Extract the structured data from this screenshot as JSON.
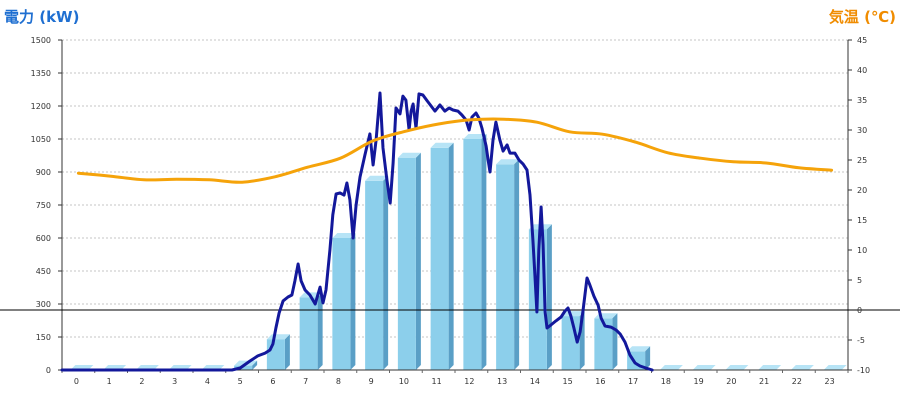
{
  "chart_data": {
    "type": "bar",
    "categories": [
      "0",
      "1",
      "2",
      "3",
      "4",
      "5",
      "6",
      "7",
      "8",
      "9",
      "10",
      "11",
      "12",
      "13",
      "14",
      "15",
      "16",
      "17",
      "18",
      "19",
      "20",
      "21",
      "22",
      "23"
    ],
    "y_left": {
      "label": "電力 (kW)",
      "range": [
        0,
        1500
      ],
      "ticks": [
        0,
        150,
        300,
        450,
        600,
        750,
        900,
        1050,
        1200,
        1350,
        1500
      ],
      "color": "#1f6fd1"
    },
    "y_right": {
      "label": "気温 (℃)",
      "range": [
        -10,
        45
      ],
      "ticks": [
        -10,
        -5,
        0,
        5,
        10,
        15,
        20,
        25,
        30,
        35,
        40,
        45
      ],
      "color": "#f08c00"
    },
    "series": [
      {
        "type": "bar",
        "axis": "y_left",
        "values": [
          0,
          0,
          0,
          0,
          0,
          20,
          140,
          330,
          600,
          860,
          965,
          1010,
          1050,
          935,
          640,
          245,
          235,
          85,
          0,
          0,
          0,
          0,
          0,
          0
        ],
        "color": "#8ccfeb",
        "side_color": "#5a9fc6",
        "top_color": "#b7e4f6"
      },
      {
        "type": "line",
        "axis": "y_left",
        "color": "#13189b",
        "points": [
          [
            0,
            0
          ],
          [
            5.19,
            0
          ],
          [
            5.44,
            9
          ],
          [
            5.74,
            41
          ],
          [
            5.98,
            64
          ],
          [
            6.2,
            77
          ],
          [
            6.35,
            91
          ],
          [
            6.44,
            118
          ],
          [
            6.53,
            191
          ],
          [
            6.63,
            259
          ],
          [
            6.75,
            314
          ],
          [
            6.9,
            332
          ],
          [
            7.02,
            341
          ],
          [
            7.11,
            405
          ],
          [
            7.21,
            482
          ],
          [
            7.3,
            405
          ],
          [
            7.42,
            364
          ],
          [
            7.57,
            341
          ],
          [
            7.73,
            300
          ],
          [
            7.88,
            377
          ],
          [
            7.97,
            305
          ],
          [
            8.06,
            364
          ],
          [
            8.18,
            545
          ],
          [
            8.27,
            705
          ],
          [
            8.37,
            800
          ],
          [
            8.49,
            805
          ],
          [
            8.61,
            795
          ],
          [
            8.7,
            850
          ],
          [
            8.79,
            773
          ],
          [
            8.89,
            600
          ],
          [
            8.98,
            750
          ],
          [
            9.1,
            877
          ],
          [
            9.25,
            977
          ],
          [
            9.4,
            1073
          ],
          [
            9.5,
            932
          ],
          [
            9.59,
            1045
          ],
          [
            9.71,
            1259
          ],
          [
            9.8,
            1009
          ],
          [
            9.92,
            864
          ],
          [
            10.02,
            759
          ],
          [
            10.11,
            941
          ],
          [
            10.2,
            1191
          ],
          [
            10.32,
            1164
          ],
          [
            10.41,
            1245
          ],
          [
            10.5,
            1227
          ],
          [
            10.6,
            1091
          ],
          [
            10.66,
            1177
          ],
          [
            10.72,
            1209
          ],
          [
            10.81,
            1100
          ],
          [
            10.9,
            1255
          ],
          [
            11.02,
            1250
          ],
          [
            11.15,
            1223
          ],
          [
            11.27,
            1200
          ],
          [
            11.39,
            1177
          ],
          [
            11.54,
            1205
          ],
          [
            11.69,
            1177
          ],
          [
            11.82,
            1191
          ],
          [
            11.94,
            1182
          ],
          [
            12.09,
            1177
          ],
          [
            12.21,
            1159
          ],
          [
            12.34,
            1136
          ],
          [
            12.43,
            1091
          ],
          [
            12.52,
            1150
          ],
          [
            12.64,
            1168
          ],
          [
            12.73,
            1145
          ],
          [
            12.82,
            1100
          ],
          [
            12.95,
            1018
          ],
          [
            13.01,
            955
          ],
          [
            13.07,
            900
          ],
          [
            13.16,
            1045
          ],
          [
            13.25,
            1127
          ],
          [
            13.37,
            1045
          ],
          [
            13.47,
            995
          ],
          [
            13.59,
            1023
          ],
          [
            13.68,
            986
          ],
          [
            13.83,
            986
          ],
          [
            13.95,
            955
          ],
          [
            14.08,
            936
          ],
          [
            14.2,
            909
          ],
          [
            14.29,
            795
          ],
          [
            14.38,
            591
          ],
          [
            14.44,
            432
          ],
          [
            14.5,
            264
          ],
          [
            14.56,
            545
          ],
          [
            14.63,
            741
          ],
          [
            14.69,
            568
          ],
          [
            14.75,
            264
          ],
          [
            14.81,
            191
          ],
          [
            14.93,
            205
          ],
          [
            15.08,
            223
          ],
          [
            15.24,
            241
          ],
          [
            15.36,
            268
          ],
          [
            15.45,
            282
          ],
          [
            15.54,
            245
          ],
          [
            15.63,
            191
          ],
          [
            15.73,
            127
          ],
          [
            15.82,
            173
          ],
          [
            15.91,
            273
          ],
          [
            16.03,
            418
          ],
          [
            16.12,
            386
          ],
          [
            16.24,
            336
          ],
          [
            16.37,
            295
          ],
          [
            16.46,
            236
          ],
          [
            16.58,
            200
          ],
          [
            16.76,
            195
          ],
          [
            16.92,
            182
          ],
          [
            17.04,
            164
          ],
          [
            17.19,
            127
          ],
          [
            17.34,
            68
          ],
          [
            17.5,
            32
          ],
          [
            17.65,
            18
          ],
          [
            17.83,
            9
          ],
          [
            18.02,
            0
          ]
        ]
      },
      {
        "type": "line",
        "axis": "y_right",
        "color": "#f5a30a",
        "values": [
          22.8,
          22.3,
          21.7,
          21.8,
          21.7,
          21.3,
          22.2,
          23.8,
          25.3,
          28.2,
          29.8,
          31.0,
          31.7,
          31.8,
          31.3,
          29.7,
          29.3,
          28.0,
          26.2,
          25.3,
          24.7,
          24.5,
          23.7,
          23.3
        ]
      }
    ],
    "grid": {
      "horizontal": true,
      "vertical": false
    },
    "reference_line_right_axis": 0
  }
}
